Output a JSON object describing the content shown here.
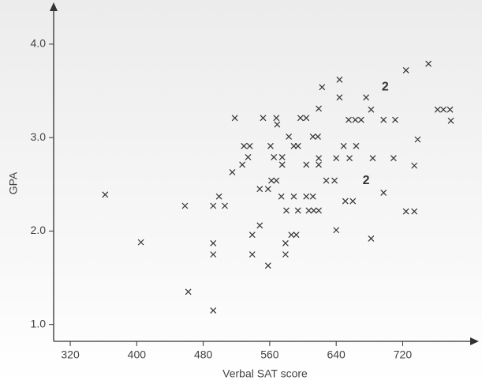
{
  "chart_data": {
    "type": "scatter",
    "x_label": "Verbal SAT score",
    "y_label": "GPA",
    "xlim": [
      300,
      805
    ],
    "ylim": [
      0.82,
      4.43
    ],
    "xticks": [
      320,
      400,
      480,
      560,
      640,
      720
    ],
    "yticks": [
      {
        "value": 1,
        "label": "1.0"
      },
      {
        "value": 2,
        "label": "2.0"
      },
      {
        "value": 3,
        "label": "3.0"
      },
      {
        "value": 4,
        "label": "4.0"
      }
    ],
    "color": "#333333",
    "x": [
      362,
      405,
      458,
      462,
      492,
      492,
      492,
      492,
      499,
      506,
      515,
      518,
      527,
      529,
      534,
      536,
      539,
      539,
      548,
      548,
      552,
      558,
      558,
      561,
      562,
      565,
      568,
      568,
      569,
      574,
      575,
      575,
      580,
      579,
      579,
      583,
      586,
      589,
      589,
      592,
      594,
      594,
      597,
      604,
      604,
      604,
      607,
      612,
      612,
      613,
      618,
      619,
      619,
      619,
      619,
      623,
      628,
      638,
      640,
      640,
      644,
      644,
      649,
      651,
      655,
      656,
      660,
      663,
      664,
      670,
      676,
      682,
      682,
      684,
      697,
      697,
      709,
      711,
      724,
      724,
      734,
      734,
      738,
      751,
      762,
      769,
      777,
      778
    ],
    "values": [
      2.39,
      1.88,
      2.27,
      1.35,
      1.15,
      2.27,
      1.87,
      1.75,
      2.37,
      2.27,
      2.63,
      3.21,
      2.71,
      2.91,
      2.79,
      2.91,
      1.96,
      1.75,
      2.06,
      2.45,
      3.21,
      2.45,
      1.63,
      2.91,
      2.54,
      2.79,
      2.54,
      3.21,
      3.14,
      2.37,
      2.79,
      2.71,
      2.22,
      1.87,
      1.75,
      3.01,
      1.96,
      2.37,
      2.91,
      1.96,
      2.91,
      2.22,
      3.21,
      3.21,
      2.71,
      2.37,
      2.22,
      3.01,
      2.37,
      2.22,
      3.01,
      2.22,
      3.31,
      2.78,
      2.71,
      3.54,
      2.54,
      2.54,
      2.78,
      2.01,
      3.62,
      3.43,
      2.91,
      2.32,
      3.19,
      2.78,
      2.32,
      3.19,
      2.91,
      3.19,
      3.43,
      3.3,
      1.92,
      2.78,
      3.19,
      2.41,
      2.78,
      3.19,
      3.72,
      2.21,
      2.21,
      2.7,
      2.98,
      3.79,
      3.3,
      3.3,
      3.3,
      3.18
    ],
    "count_labels": [
      {
        "x": 676,
        "y": 2.54,
        "label": "2"
      },
      {
        "x": 699,
        "y": 3.54,
        "label": "2"
      }
    ]
  }
}
